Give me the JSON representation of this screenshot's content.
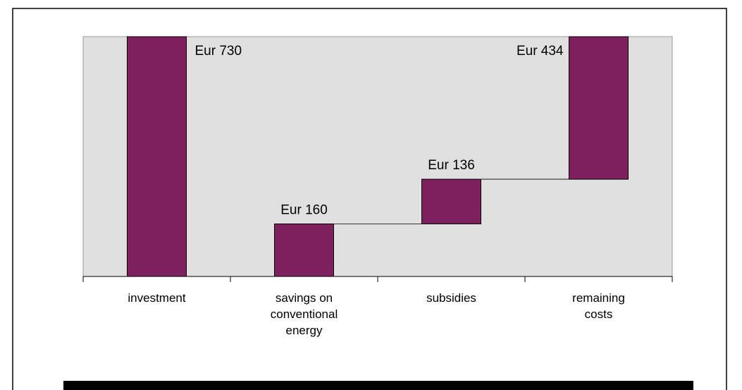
{
  "chart_data": {
    "type": "waterfall",
    "categories": [
      "investment",
      "savings on\nconventional\nenergy",
      "subsidies",
      "remaining\ncosts"
    ],
    "steps": [
      {
        "category": "investment",
        "kind": "total",
        "value": 730,
        "label": "Eur 730"
      },
      {
        "category": "savings on conventional energy",
        "kind": "decrease",
        "value": 160,
        "label": "Eur 160"
      },
      {
        "category": "subsidies",
        "kind": "decrease",
        "value": 136,
        "label": "Eur 136"
      },
      {
        "category": "remaining costs",
        "kind": "total",
        "value": 434,
        "label": "Eur 434"
      }
    ],
    "ylim": [
      0,
      730
    ],
    "grid": false,
    "colors": {
      "bar": "#7e1f5e",
      "plot_background": "#e0e0e0",
      "connector": "#000000",
      "frame": "#000000",
      "footer_rule": "#000000"
    }
  }
}
